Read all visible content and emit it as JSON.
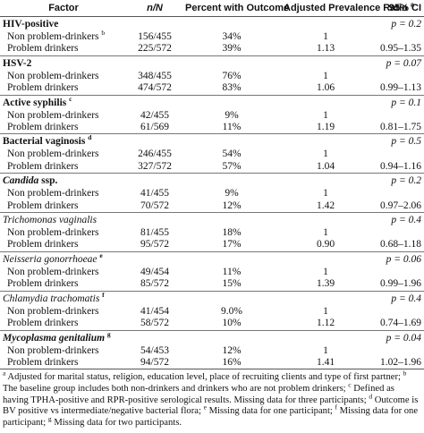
{
  "table": {
    "columns": [
      {
        "text": "Factor"
      },
      {
        "text": "n/N",
        "italic": true
      },
      {
        "text": "Percent with Outcome"
      },
      {
        "text": "Adjusted Prevalence Ratio",
        "sup": "a"
      },
      {
        "text": "95% CI"
      }
    ],
    "groups": [
      {
        "name": [
          {
            "text": "HIV-positive"
          }
        ],
        "p": "p = 0.2",
        "rows": [
          {
            "label": "Non problem-drinkers",
            "sup": "b",
            "cells": [
              "156/455",
              "34%",
              "1",
              ""
            ]
          },
          {
            "label": "Problem drinkers",
            "cells": [
              "225/572",
              "39%",
              "1.13",
              "0.95–1.35"
            ]
          }
        ]
      },
      {
        "name": [
          {
            "text": "HSV-2"
          }
        ],
        "p": "p = 0.07",
        "rows": [
          {
            "label": "Non problem-drinkers",
            "cells": [
              "348/455",
              "76%",
              "1",
              ""
            ]
          },
          {
            "label": "Problem drinkers",
            "cells": [
              "474/572",
              "83%",
              "1.06",
              "0.99–1.13"
            ]
          }
        ]
      },
      {
        "name": [
          {
            "text": "Active syphilis"
          }
        ],
        "sup": "c",
        "p": "p = 0.1",
        "rows": [
          {
            "label": "Non problem-drinkers",
            "cells": [
              "42/455",
              "9%",
              "1",
              ""
            ]
          },
          {
            "label": "Problem drinkers",
            "cells": [
              "61/569",
              "11%",
              "1.19",
              "0.81–1.75"
            ]
          }
        ]
      },
      {
        "name": [
          {
            "text": "Bacterial vaginosis"
          }
        ],
        "sup": "d",
        "p": "p = 0.5",
        "rows": [
          {
            "label": "Non problem-drinkers",
            "cells": [
              "246/455",
              "54%",
              "1",
              ""
            ]
          },
          {
            "label": "Problem drinkers",
            "cells": [
              "327/572",
              "57%",
              "1.04",
              "0.94–1.16"
            ]
          }
        ]
      },
      {
        "name": [
          {
            "text": "Candida",
            "italic": true
          },
          {
            "text": "ssp."
          }
        ],
        "p": "p = 0.2",
        "rows": [
          {
            "label": "Non problem-drinkers",
            "cells": [
              "41/455",
              "9%",
              "1",
              ""
            ]
          },
          {
            "label": "Problem drinkers",
            "cells": [
              "70/572",
              "12%",
              "1.42",
              "0.97–2.06"
            ]
          }
        ]
      },
      {
        "name": [
          {
            "text": "Trichomonas vaginalis",
            "italic": true,
            "plain": true
          }
        ],
        "p": "p = 0.4",
        "rows": [
          {
            "label": "Non problem-drinkers",
            "cells": [
              "81/455",
              "18%",
              "1",
              ""
            ]
          },
          {
            "label": "Problem drinkers",
            "cells": [
              "95/572",
              "17%",
              "0.90",
              "0.68–1.18"
            ]
          }
        ]
      },
      {
        "name": [
          {
            "text": "Neisseria gonorrhoeae",
            "italic": true,
            "plain": true
          }
        ],
        "sup": "e",
        "p": "p = 0.06",
        "rows": [
          {
            "label": "Non problem-drinkers",
            "cells": [
              "49/454",
              "11%",
              "1",
              ""
            ]
          },
          {
            "label": "Problem drinkers",
            "cells": [
              "85/572",
              "15%",
              "1.39",
              "0.99–1.96"
            ]
          }
        ]
      },
      {
        "name": [
          {
            "text": "Chlamydia trachomatis",
            "italic": true,
            "plain": true
          }
        ],
        "sup": "f",
        "p": "p = 0.4",
        "rows": [
          {
            "label": "Non problem-drinkers",
            "cells": [
              "41/454",
              "9.0%",
              "1",
              ""
            ]
          },
          {
            "label": "Problem drinkers",
            "cells": [
              "58/572",
              "10%",
              "1.12",
              "0.74–1.69"
            ]
          }
        ]
      },
      {
        "name": [
          {
            "text": "Mycoplasma genitalium",
            "italic": true
          }
        ],
        "sup": "g",
        "p": "p = 0.04",
        "rows": [
          {
            "label": "Non problem-drinkers",
            "cells": [
              "54/453",
              "12%",
              "1",
              ""
            ]
          },
          {
            "label": "Problem drinkers",
            "cells": [
              "94/572",
              "16%",
              "1.41",
              "1.02–1.96"
            ]
          }
        ]
      }
    ],
    "footnotes": [
      {
        "mark": "a",
        "text": "Adjusted for marital status, religion, education level, place of recruiting clients and type of first partner;"
      },
      {
        "mark": "b",
        "text": "The baseline group includes both non-drinkers and drinkers who are not problem drinkers;"
      },
      {
        "mark": "c",
        "text": "Defined as having TPHA-positive and RPR-positive serological results. Missing data for three participants;"
      },
      {
        "mark": "d",
        "text": "Outcome is BV positive vs intermediate/negative bacterial flora;"
      },
      {
        "mark": "e",
        "text": "Missing data for one participant;"
      },
      {
        "mark": "f",
        "text": "Missing data for one participant;"
      },
      {
        "mark": "g",
        "text": "Missing data for two participants."
      }
    ]
  }
}
